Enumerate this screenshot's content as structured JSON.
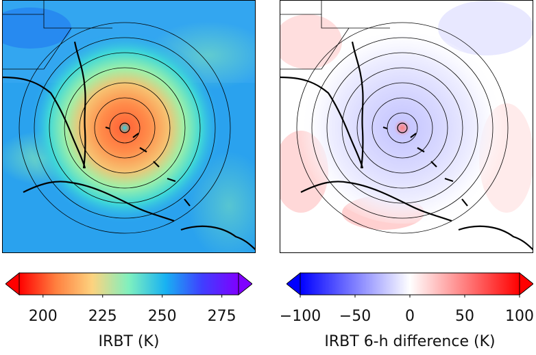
{
  "chart_data": [
    {
      "type": "heatmap",
      "title": "",
      "colorbar_label": "IRBT (K)",
      "colormap": "rainbow (red to violet)",
      "colormap_stops": [
        "#ff0000",
        "#ff7f3f",
        "#fdd37f",
        "#7ff0bf",
        "#18b2f2",
        "#3f3fff",
        "#7f00ff"
      ],
      "clim": [
        190,
        282
      ],
      "colorbar_ticks": [
        200,
        225,
        250,
        275
      ],
      "colorbar_tick_labels": [
        "200",
        "225",
        "250",
        "275"
      ],
      "colorbar_extend": "both",
      "range_rings": 7,
      "map_features": [
        "coastlines",
        "state borders",
        "range rings centered on storm"
      ]
    },
    {
      "type": "heatmap",
      "title": "",
      "colorbar_label": "IRBT 6-h difference (K)",
      "colormap": "bwr (blue-white-red)",
      "colormap_stops": [
        "#0000ff",
        "#ffffff",
        "#ff0000"
      ],
      "clim": [
        -100,
        100
      ],
      "colorbar_ticks": [
        -100,
        -50,
        0,
        50,
        100
      ],
      "colorbar_tick_labels": [
        "−100",
        "−50",
        "0",
        "50",
        "100"
      ],
      "colorbar_extend": "both",
      "range_rings": 7,
      "map_features": [
        "coastlines",
        "state borders",
        "range rings centered on storm"
      ]
    }
  ]
}
